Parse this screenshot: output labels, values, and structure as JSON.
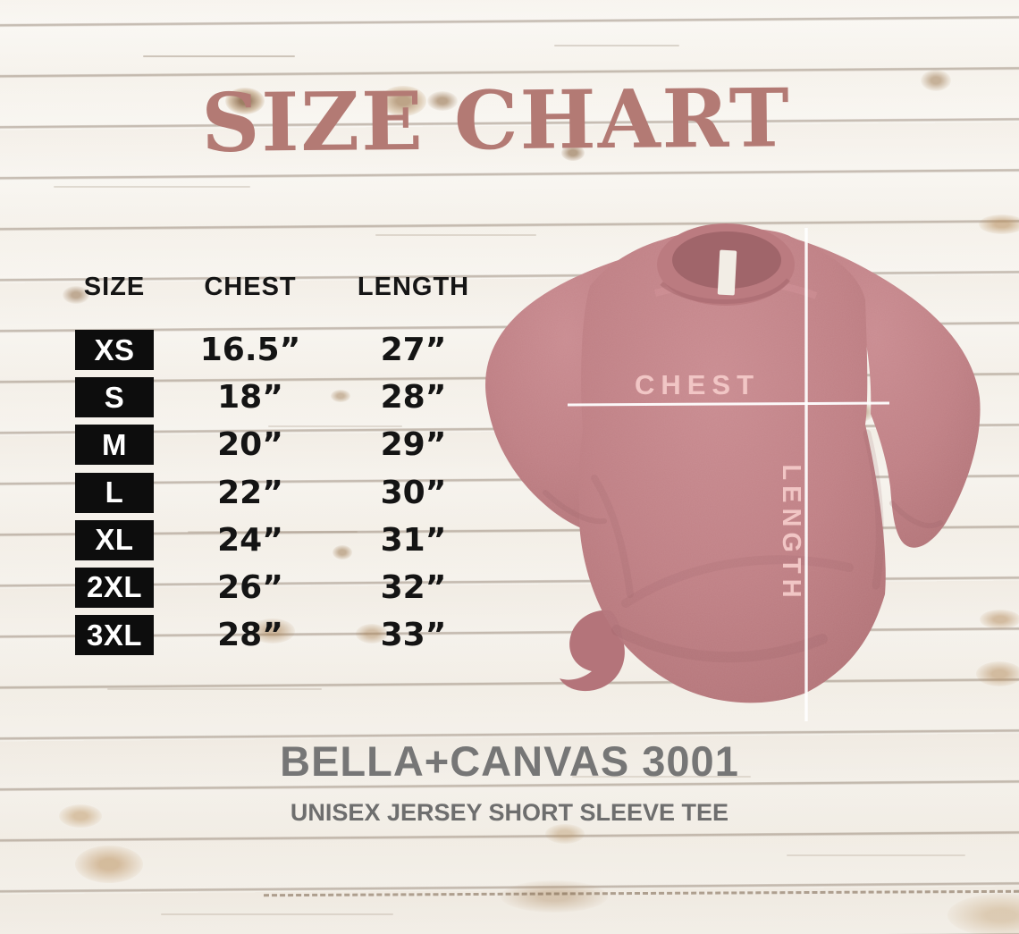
{
  "title": "SIZE CHART",
  "size_table": {
    "headers": [
      "SIZE",
      "CHEST",
      "LENGTH"
    ],
    "rows": [
      {
        "size": "XS",
        "chest": "16.5”",
        "length": "27”"
      },
      {
        "size": "S",
        "chest": "18”",
        "length": "28”"
      },
      {
        "size": "M",
        "chest": "20”",
        "length": "29”"
      },
      {
        "size": "L",
        "chest": "22”",
        "length": "30”"
      },
      {
        "size": "XL",
        "chest": "24”",
        "length": "31”"
      },
      {
        "size": "2XL",
        "chest": "26”",
        "length": "32”"
      },
      {
        "size": "3XL",
        "chest": "28”",
        "length": "33”"
      }
    ]
  },
  "shirt_diagram": {
    "chest_line_label": "CHEST",
    "length_line_label": "LENGTH"
  },
  "footer": {
    "product_name": "BELLA+CANVAS 3001",
    "product_subtitle": "UNISEX JERSEY SHORT SLEEVE TEE"
  },
  "colors": {
    "title_text": "#b37a74",
    "shirt_fabric": "#c28489",
    "measure_line": "#ffffff",
    "measure_label": "#f1c6c5",
    "chip_background": "#0d0d0d",
    "chip_text": "#ffffff",
    "table_text": "#141414",
    "footer_text": "#767676",
    "wood_base": "#f7f4ef"
  },
  "chart_data": {
    "type": "table",
    "title": "SIZE CHART",
    "columns": [
      "SIZE",
      "CHEST",
      "LENGTH"
    ],
    "rows": [
      [
        "XS",
        "16.5”",
        "27”"
      ],
      [
        "S",
        "18”",
        "28”"
      ],
      [
        "M",
        "20”",
        "29”"
      ],
      [
        "L",
        "22”",
        "30”"
      ],
      [
        "XL",
        "24”",
        "31”"
      ],
      [
        "2XL",
        "26”",
        "32”"
      ],
      [
        "3XL",
        "28”",
        "33”"
      ]
    ],
    "units": "inches",
    "notes": "Measurement diagram on t-shirt photo: horizontal CHEST line, vertical LENGTH line"
  }
}
